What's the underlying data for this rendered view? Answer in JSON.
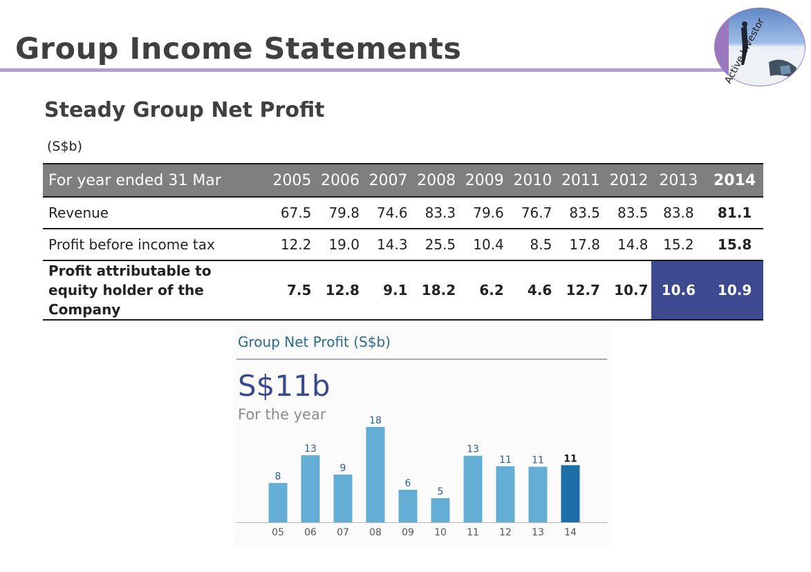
{
  "slide": {
    "title": "Group Income Statements",
    "badge_text": "Active Investor",
    "subtitle": "Steady Group Net Profit",
    "unit": "(S$b)"
  },
  "table": {
    "header_label": "For year ended 31 Mar",
    "years": [
      "2005",
      "2006",
      "2007",
      "2008",
      "2009",
      "2010",
      "2011",
      "2012",
      "2013",
      "2014"
    ],
    "rows": [
      {
        "label": "Revenue",
        "values": [
          "67.5",
          "79.8",
          "74.6",
          "83.3",
          "79.6",
          "76.7",
          "83.5",
          "83.5",
          "83.8",
          "81.1"
        ]
      },
      {
        "label": "Profit before income tax",
        "values": [
          "12.2",
          "19.0",
          "14.3",
          "25.5",
          "10.4",
          "8.5",
          "17.8",
          "14.8",
          "15.2",
          "15.8"
        ]
      },
      {
        "label": "Profit attributable to equity holder of the Company",
        "values": [
          "7.5",
          "12.8",
          "9.1",
          "18.2",
          "6.2",
          "4.6",
          "12.7",
          "10.7",
          "10.6",
          "10.9"
        ]
      }
    ]
  },
  "chart_panel": {
    "headline": "S$11b",
    "caption": "For the year"
  },
  "colors": {
    "accent_purple": "#b39ccf",
    "highlight_navy": "#3e4a8f",
    "bar": "#64aed5",
    "bar_latest": "#1e6fa8"
  },
  "chart_data": {
    "type": "bar",
    "title": "Group Net Profit (S$b)",
    "categories": [
      "05",
      "06",
      "07",
      "08",
      "09",
      "10",
      "11",
      "12",
      "13",
      "14"
    ],
    "values": [
      7.5,
      12.8,
      9.1,
      18.2,
      6.2,
      4.6,
      12.7,
      10.7,
      10.6,
      10.9
    ],
    "data_labels": [
      "8",
      "13",
      "9",
      "18",
      "6",
      "5",
      "13",
      "11",
      "11",
      "11"
    ],
    "ylim": [
      0,
      18.2
    ],
    "grid": false,
    "legend": "none"
  }
}
